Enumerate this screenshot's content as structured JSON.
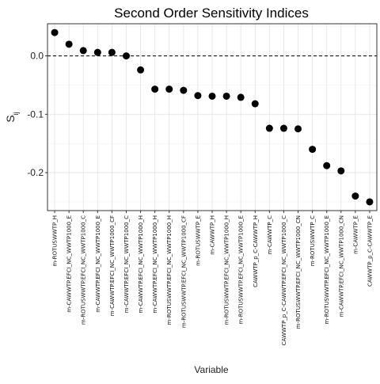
{
  "chart_data": {
    "type": "scatter",
    "title": "Second Order Sensitivity Indices",
    "xlabel": "Variable",
    "ylabel": "S",
    "ylabel_subscript": "ij",
    "ylim": [
      -0.265,
      0.055
    ],
    "yticks": [
      0.0,
      -0.1,
      -0.2
    ],
    "ytick_labels": [
      "0.0",
      "-0.1",
      "-0.2"
    ],
    "reference_line": {
      "y": 0.0,
      "style": "dashed"
    },
    "grid": true,
    "point_color": "#000000",
    "categories": [
      "m-ROTUSWWTP_H",
      "m-CAWWTP.EFCI_NC_WWTP1000_E",
      "m-ROTUSWWTP.EFCI_NC_WWTP1000_C",
      "m-CAWWTP.EFCI_NC_WWTP1000_E",
      "m-CAWWTP.EFCI_NC_WWTP1000_CF",
      "m-CAWWTP.EFCI_NC_WWTP1000_C",
      "m-CAWWTP.EFCI_NC_WWTP1000_H",
      "m-CAWWTP.EFCI_NC_WWTP1000_H",
      "m-ROTUSWWTP.EFCI_NC_WWTP1000_H",
      "m-ROTUSWWTP.EFCI_NC_WWTP1000_CF",
      "m-ROTUSWWTP_E",
      "m-CAWWTP_H",
      "m-ROTUSWWTP.EFCI_NC_WWTP1000_H",
      "m-ROTUSWWTP.EFCI_NC_WWTP1000_E",
      "CAWWTP_p_C-CAWWTP_H",
      "m-CAWWTP_C",
      "CAWWTP_p_C-CAWWTP.EFCI_NC_WWTP1000_C",
      "m-ROTUSWWTP.EFCI_NC_WWTP1000_CN",
      "m-ROTUSWWTP_C",
      "m-ROTUSWWTP.EFCI_NC_WWTP1000_E",
      "m-CAWWTP.EFCI_NC_WWTP1000_CN",
      "m-CAWWTP_E",
      "CAWWTP_p_C-CAWWTP_E"
    ],
    "values": [
      0.04,
      0.02,
      0.009,
      0.006,
      0.006,
      0.0,
      -0.024,
      -0.057,
      -0.057,
      -0.059,
      -0.068,
      -0.069,
      -0.069,
      -0.071,
      -0.082,
      -0.124,
      -0.124,
      -0.125,
      -0.16,
      -0.188,
      -0.197,
      -0.24,
      -0.25
    ]
  }
}
